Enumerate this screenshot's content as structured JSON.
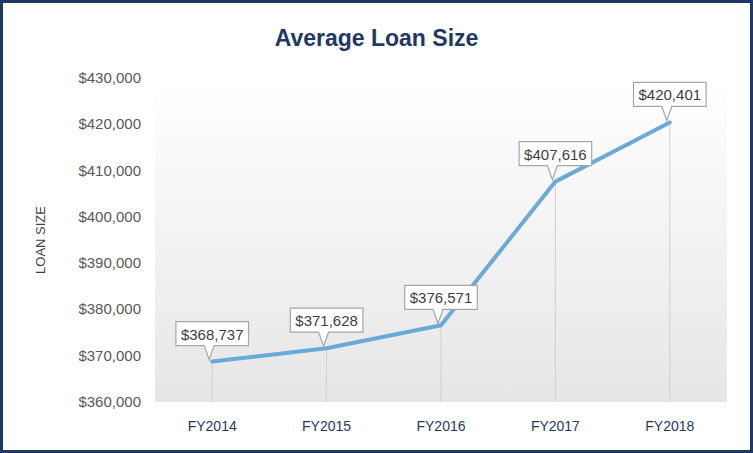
{
  "chart_data": {
    "type": "line",
    "title": "Average Loan Size",
    "ylabel": "LOAN SIZE",
    "categories": [
      "FY2014",
      "FY2015",
      "FY2016",
      "FY2017",
      "FY2018"
    ],
    "values": [
      368737,
      371628,
      376571,
      407616,
      420401
    ],
    "value_labels": [
      "$368,737",
      "$371,628",
      "$376,571",
      "$407,616",
      "$420,401"
    ],
    "color": "#6aaad6",
    "ylim": [
      360000,
      430000
    ],
    "yticks": [
      {
        "value": 360000,
        "label": "$360,000"
      },
      {
        "value": 370000,
        "label": "$370,000"
      },
      {
        "value": 380000,
        "label": "$380,000"
      },
      {
        "value": 390000,
        "label": "$390,000"
      },
      {
        "value": 400000,
        "label": "$400,000"
      },
      {
        "value": 410000,
        "label": "$410,000"
      },
      {
        "value": 420000,
        "label": "$420,000"
      },
      {
        "value": 430000,
        "label": "$430,000"
      }
    ],
    "data_labels": true,
    "grid": false
  }
}
